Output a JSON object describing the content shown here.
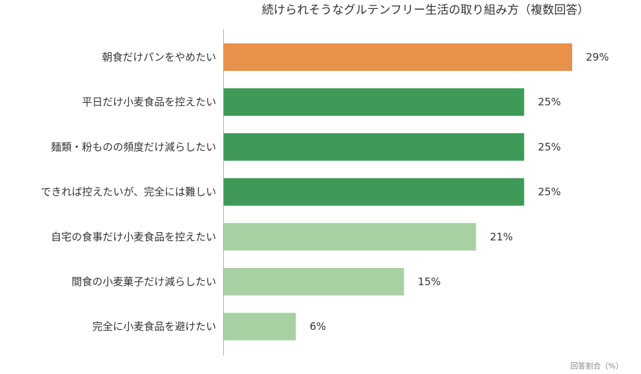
{
  "chart_data": {
    "type": "bar",
    "orientation": "horizontal",
    "title": "続けられそうなグルテンフリー生活の取り組み方（複数回答）",
    "xlabel": "回答割合（%）",
    "ylabel": "",
    "value_suffix": "%",
    "xlim": [
      0,
      30
    ],
    "grid": false,
    "legend": "none",
    "categories": [
      "朝食だけパンをやめたい",
      "平日だけ小麦食品を控えたい",
      "麺類・粉ものの頻度だけ減らしたい",
      "できれば控えたいが、完全には難しい",
      "自宅の食事だけ小麦食品を控えたい",
      "間食の小麦菓子だけ減らしたい",
      "完全に小麦食品を避けたい"
    ],
    "values": [
      29,
      25,
      25,
      25,
      21,
      15,
      6
    ],
    "colors": [
      "#e8914a",
      "#3f9a57",
      "#3f9a57",
      "#3f9a57",
      "#a8d1a3",
      "#a8d1a3",
      "#a8d1a3"
    ]
  }
}
